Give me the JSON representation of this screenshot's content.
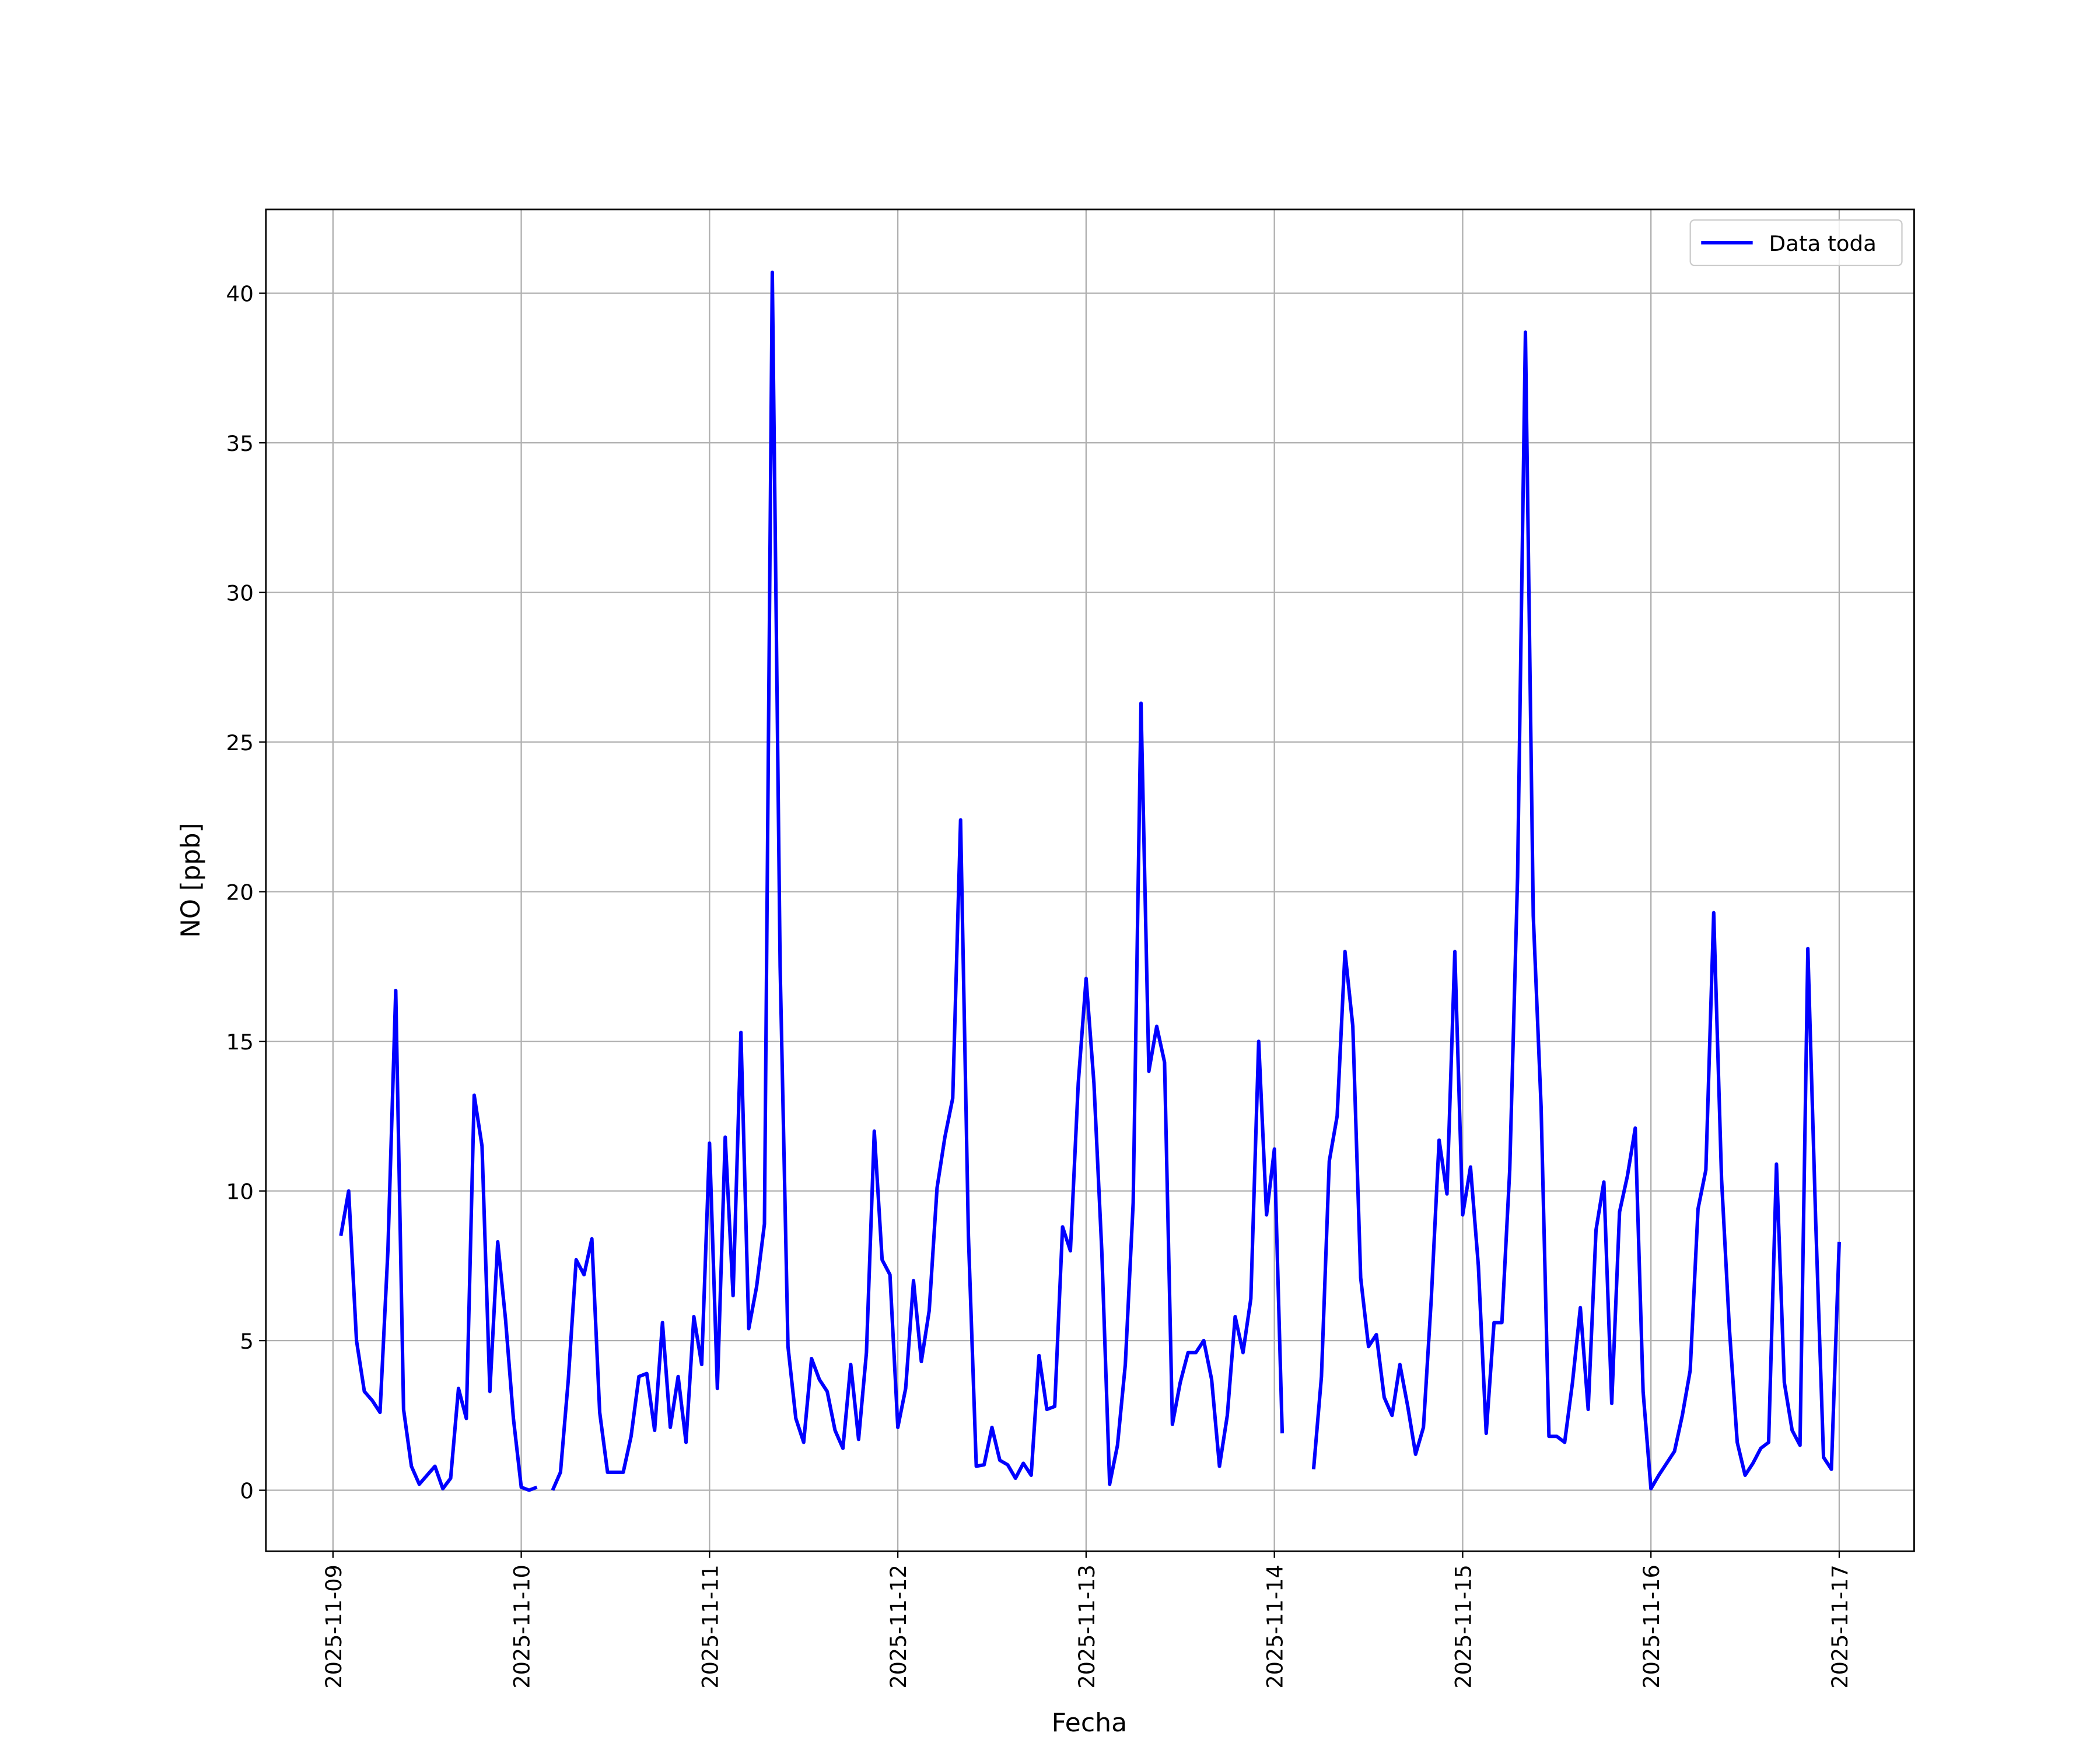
{
  "chart_data": {
    "type": "line",
    "xlabel": "Fecha",
    "ylabel": "NO [ppb]",
    "xlim": [
      "2025-11-08 15:27",
      "2025-11-17 09:33"
    ],
    "xticks": [
      "2025-11-09",
      "2025-11-10",
      "2025-11-11",
      "2025-11-12",
      "2025-11-13",
      "2025-11-14",
      "2025-11-15",
      "2025-11-16",
      "2025-11-17"
    ],
    "ylim": [
      -2.04,
      42.8
    ],
    "yticks": [
      0,
      5,
      10,
      15,
      20,
      25,
      30,
      35,
      40
    ],
    "grid": true,
    "legend": "upper right",
    "x": [
      "2025-11-09 01:00",
      "2025-11-09 02:00",
      "2025-11-09 03:00",
      "2025-11-09 04:00",
      "2025-11-09 05:00",
      "2025-11-09 06:00",
      "2025-11-09 07:00",
      "2025-11-09 08:00",
      "2025-11-09 09:00",
      "2025-11-09 10:00",
      "2025-11-09 11:00",
      "2025-11-09 12:00",
      "2025-11-09 13:00",
      "2025-11-09 14:00",
      "2025-11-09 15:00",
      "2025-11-09 16:00",
      "2025-11-09 17:00",
      "2025-11-09 18:00",
      "2025-11-09 19:00",
      "2025-11-09 20:00",
      "2025-11-09 21:00",
      "2025-11-09 22:00",
      "2025-11-09 23:00",
      "2025-11-10 00:00",
      "2025-11-10 01:00",
      "2025-11-10 02:00",
      "2025-11-10 03:00",
      "2025-11-10 04:00",
      "2025-11-10 05:00",
      "2025-11-10 06:00",
      "2025-11-10 07:00",
      "2025-11-10 08:00",
      "2025-11-10 09:00",
      "2025-11-10 10:00",
      "2025-11-10 11:00",
      "2025-11-10 12:00",
      "2025-11-10 13:00",
      "2025-11-10 14:00",
      "2025-11-10 15:00",
      "2025-11-10 16:00",
      "2025-11-10 17:00",
      "2025-11-10 18:00",
      "2025-11-10 19:00",
      "2025-11-10 20:00",
      "2025-11-10 21:00",
      "2025-11-10 22:00",
      "2025-11-10 23:00",
      "2025-11-11 00:00",
      "2025-11-11 01:00",
      "2025-11-11 02:00",
      "2025-11-11 03:00",
      "2025-11-11 04:00",
      "2025-11-11 05:00",
      "2025-11-11 06:00",
      "2025-11-11 07:00",
      "2025-11-11 08:00",
      "2025-11-11 09:00",
      "2025-11-11 10:00",
      "2025-11-11 11:00",
      "2025-11-11 12:00",
      "2025-11-11 13:00",
      "2025-11-11 14:00",
      "2025-11-11 15:00",
      "2025-11-11 16:00",
      "2025-11-11 17:00",
      "2025-11-11 18:00",
      "2025-11-11 19:00",
      "2025-11-11 20:00",
      "2025-11-11 21:00",
      "2025-11-11 22:00",
      "2025-11-11 23:00",
      "2025-11-12 00:00",
      "2025-11-12 01:00",
      "2025-11-12 02:00",
      "2025-11-12 03:00",
      "2025-11-12 04:00",
      "2025-11-12 05:00",
      "2025-11-12 06:00",
      "2025-11-12 07:00",
      "2025-11-12 08:00",
      "2025-11-12 09:00",
      "2025-11-12 10:00",
      "2025-11-12 11:00",
      "2025-11-12 12:00",
      "2025-11-12 13:00",
      "2025-11-12 14:00",
      "2025-11-12 15:00",
      "2025-11-12 16:00",
      "2025-11-12 17:00",
      "2025-11-12 18:00",
      "2025-11-12 19:00",
      "2025-11-12 20:00",
      "2025-11-12 21:00",
      "2025-11-12 22:00",
      "2025-11-12 23:00",
      "2025-11-13 00:00",
      "2025-11-13 01:00",
      "2025-11-13 02:00",
      "2025-11-13 03:00",
      "2025-11-13 04:00",
      "2025-11-13 05:00",
      "2025-11-13 06:00",
      "2025-11-13 07:00",
      "2025-11-13 08:00",
      "2025-11-13 09:00",
      "2025-11-13 10:00",
      "2025-11-13 11:00",
      "2025-11-13 12:00",
      "2025-11-13 13:00",
      "2025-11-13 14:00",
      "2025-11-13 15:00",
      "2025-11-13 16:00",
      "2025-11-13 17:00",
      "2025-11-13 18:00",
      "2025-11-13 19:00",
      "2025-11-13 20:00",
      "2025-11-13 21:00",
      "2025-11-13 22:00",
      "2025-11-13 23:00",
      "2025-11-14 00:00",
      "2025-11-14 01:00",
      "2025-11-14 02:00",
      "2025-11-14 03:00",
      "2025-11-14 04:00",
      "2025-11-14 05:00",
      "2025-11-14 06:00",
      "2025-11-14 07:00",
      "2025-11-14 08:00",
      "2025-11-14 09:00",
      "2025-11-14 10:00",
      "2025-11-14 11:00",
      "2025-11-14 12:00",
      "2025-11-14 13:00",
      "2025-11-14 14:00",
      "2025-11-14 15:00",
      "2025-11-14 16:00",
      "2025-11-14 17:00",
      "2025-11-14 18:00",
      "2025-11-14 19:00",
      "2025-11-14 20:00",
      "2025-11-14 21:00",
      "2025-11-14 22:00",
      "2025-11-14 23:00",
      "2025-11-15 00:00",
      "2025-11-15 01:00",
      "2025-11-15 02:00",
      "2025-11-15 03:00",
      "2025-11-15 04:00",
      "2025-11-15 05:00",
      "2025-11-15 06:00",
      "2025-11-15 07:00",
      "2025-11-15 08:00",
      "2025-11-15 09:00",
      "2025-11-15 10:00",
      "2025-11-15 11:00",
      "2025-11-15 12:00",
      "2025-11-15 13:00",
      "2025-11-15 14:00",
      "2025-11-15 15:00",
      "2025-11-15 16:00",
      "2025-11-15 17:00",
      "2025-11-15 18:00",
      "2025-11-15 19:00",
      "2025-11-15 20:00",
      "2025-11-15 21:00",
      "2025-11-15 22:00",
      "2025-11-15 23:00",
      "2025-11-16 00:00",
      "2025-11-16 01:00",
      "2025-11-16 02:00",
      "2025-11-16 03:00",
      "2025-11-16 04:00",
      "2025-11-16 05:00",
      "2025-11-16 06:00",
      "2025-11-16 07:00",
      "2025-11-16 08:00",
      "2025-11-16 09:00",
      "2025-11-16 10:00",
      "2025-11-16 11:00",
      "2025-11-16 12:00",
      "2025-11-16 13:00",
      "2025-11-16 14:00",
      "2025-11-16 15:00",
      "2025-11-16 16:00",
      "2025-11-16 17:00",
      "2025-11-16 18:00",
      "2025-11-16 19:00",
      "2025-11-16 20:00",
      "2025-11-16 21:00",
      "2025-11-16 22:00",
      "2025-11-16 23:00",
      "2025-11-17 00:00"
    ],
    "series": [
      {
        "name": "Data toda",
        "color": "#0000ff",
        "values": [
          8.5,
          10,
          5,
          3.3,
          3,
          2.6,
          8,
          16.7,
          2.7,
          0.8,
          0.2,
          0.5,
          0.8,
          0.05,
          0.4,
          3.4,
          2.4,
          13.2,
          11.5,
          3.3,
          8.3,
          5.7,
          2.4,
          0.1,
          0.0,
          0.1,
          null,
          0.0,
          0.6,
          3.7,
          7.7,
          7.2,
          8.4,
          2.6,
          0.6,
          0.6,
          0.6,
          1.8,
          3.8,
          3.9,
          2.0,
          5.6,
          2.1,
          3.8,
          1.6,
          5.8,
          4.2,
          11.6,
          3.4,
          11.8,
          6.5,
          15.3,
          5.4,
          6.8,
          8.9,
          40.7,
          17.5,
          4.8,
          2.4,
          1.6,
          4.4,
          3.7,
          3.3,
          2.0,
          1.4,
          4.2,
          1.7,
          4.6,
          12.0,
          7.7,
          7.2,
          2.1,
          3.4,
          7.0,
          4.3,
          6.0,
          10.1,
          11.8,
          13.1,
          22.4,
          8.5,
          0.8,
          0.85,
          2.1,
          1.0,
          0.85,
          0.4,
          0.9,
          0.5,
          4.5,
          2.7,
          2.8,
          8.8,
          8.0,
          13.6,
          17.1,
          13.6,
          8.0,
          0.2,
          1.5,
          4.2,
          9.6,
          26.3,
          14.0,
          15.5,
          14.3,
          2.2,
          3.6,
          4.6,
          4.6,
          5.0,
          3.7,
          0.8,
          2.5,
          5.8,
          4.6,
          6.4,
          15.0,
          9.2,
          11.4,
          1.9,
          null,
          null,
          null,
          0.7,
          3.8,
          11.0,
          12.5,
          18.0,
          15.5,
          7.1,
          4.8,
          5.2,
          3.1,
          2.5,
          4.2,
          2.8,
          1.2,
          2.1,
          6.4,
          11.7,
          9.9,
          18.0,
          9.2,
          10.8,
          7.5,
          1.9,
          5.6,
          5.6,
          10.7,
          20.5,
          38.7,
          19.2,
          12.8,
          1.8,
          1.8,
          1.6,
          3.6,
          6.1,
          2.7,
          8.7,
          10.3,
          2.9,
          9.3,
          10.5,
          12.1,
          3.3,
          0.05,
          0.5,
          0.9,
          1.3,
          2.5,
          4.0,
          9.4,
          10.7,
          19.3,
          10.4,
          5.4,
          1.6,
          0.5,
          0.9,
          1.4,
          1.6,
          10.9,
          3.6,
          2.0,
          1.5,
          18.1,
          9.0,
          1.1,
          0.7,
          8.3
        ]
      }
    ]
  }
}
